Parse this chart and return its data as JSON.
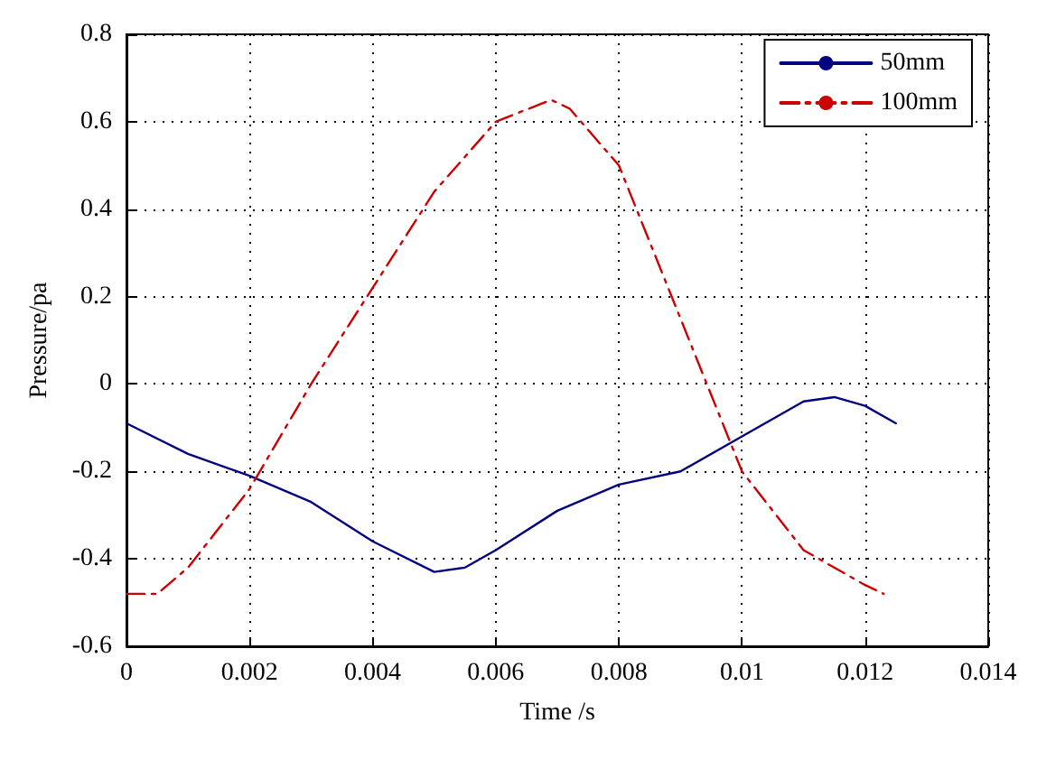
{
  "chart_data": {
    "type": "line",
    "xlabel": "Time /s",
    "ylabel": "Pressure/pa",
    "xlim": [
      0,
      0.014
    ],
    "xticks": [
      0,
      0.002,
      0.004,
      0.006,
      0.008,
      0.01,
      0.012,
      0.014
    ],
    "ylim": [
      -0.6,
      0.8
    ],
    "yticks": [
      -0.6,
      -0.4,
      -0.2,
      0,
      0.2,
      0.4,
      0.6,
      0.8
    ],
    "grid": true,
    "legend": "top right",
    "marker": "none",
    "series": [
      {
        "name": "50mm",
        "color": "#000080",
        "line_style": "solid",
        "x": [
          0,
          0.001,
          0.002,
          0.003,
          0.004,
          0.005,
          0.0055,
          0.006,
          0.007,
          0.008,
          0.009,
          0.01,
          0.011,
          0.0115,
          0.012,
          0.0125
        ],
        "values": [
          -0.09,
          -0.16,
          -0.21,
          -0.27,
          -0.36,
          -0.43,
          -0.42,
          -0.38,
          -0.29,
          -0.23,
          -0.2,
          -0.12,
          -0.04,
          -0.03,
          -0.05,
          -0.09
        ]
      },
      {
        "name": "100mm",
        "color": "#cc0000",
        "line_style": "dashed",
        "x": [
          0,
          0.0005,
          0.001,
          0.002,
          0.003,
          0.004,
          0.005,
          0.006,
          0.0069,
          0.0072,
          0.008,
          0.009,
          0.01,
          0.011,
          0.012,
          0.0123
        ],
        "values": [
          -0.48,
          -0.48,
          -0.42,
          -0.24,
          0.0,
          0.22,
          0.44,
          0.6,
          0.65,
          0.63,
          0.5,
          0.15,
          -0.2,
          -0.38,
          -0.46,
          -0.48
        ]
      }
    ]
  }
}
